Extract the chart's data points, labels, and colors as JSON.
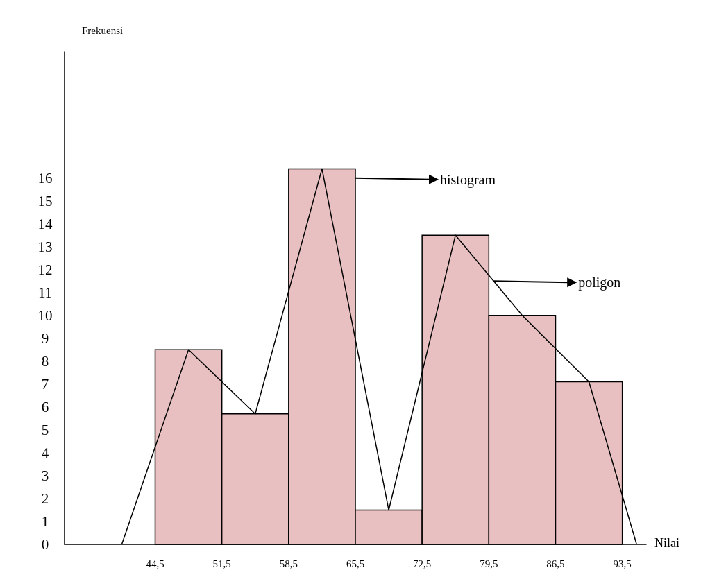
{
  "chart_data": {
    "type": "histogram",
    "ylabel": "Frekuensi",
    "xlabel": "Nilai",
    "bins": [
      44.5,
      51.5,
      58.5,
      65.5,
      72.5,
      79.5,
      86.5,
      93.5
    ],
    "series": [
      {
        "color": "#e9c0c1",
        "values": [
          8.5,
          5.7,
          16.4,
          1.5,
          13.5,
          10,
          7.1
        ]
      },
      {
        "type": "line",
        "color": "#000000",
        "x": [
          41,
          48,
          55,
          62,
          69,
          76,
          83,
          90,
          95
        ],
        "values": [
          0,
          8.5,
          5.7,
          16.4,
          1.5,
          13.5,
          10,
          7.1,
          0
        ]
      }
    ],
    "xlim": [
      35,
      96
    ],
    "ylim": [
      0,
      21.5
    ],
    "xticks": [
      {
        "value": 44.5,
        "label": "44,5"
      },
      {
        "value": 51.5,
        "label": "51,5"
      },
      {
        "value": 58.5,
        "label": "58,5"
      },
      {
        "value": 65.5,
        "label": "65,5"
      },
      {
        "value": 72.5,
        "label": "72,5"
      },
      {
        "value": 79.5,
        "label": "79,5"
      },
      {
        "value": 86.5,
        "label": "86,5"
      },
      {
        "value": 93.5,
        "label": "93,5"
      }
    ],
    "yticks": [
      0,
      1,
      2,
      3,
      4,
      5,
      6,
      7,
      8,
      9,
      10,
      11,
      12,
      13,
      14,
      15,
      16
    ],
    "annotations": [
      {
        "text": "histogram",
        "x": 65.5,
        "y": 16
      },
      {
        "text": "poligon",
        "x": 80,
        "y": 11.5
      }
    ],
    "grid": false,
    "marker": "none",
    "line_style": "solid"
  }
}
